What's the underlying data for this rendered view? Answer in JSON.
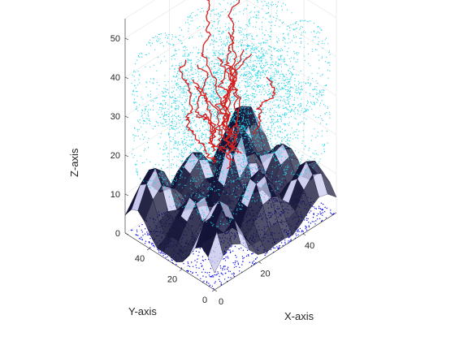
{
  "chart_data": {
    "type": "scatter",
    "plot_kind": "3d-surface-with-point-clouds-and-paths",
    "title": "",
    "xlabel": "X-axis",
    "ylabel": "Y-axis",
    "zlabel": "Z-axis",
    "xlim": [
      0,
      55
    ],
    "ylim": [
      0,
      55
    ],
    "zlim": [
      0,
      55
    ],
    "x_ticks": [
      0,
      20,
      40
    ],
    "y_ticks": [
      0,
      20,
      40
    ],
    "z_ticks": [
      0,
      10,
      20,
      30,
      40,
      50
    ],
    "grid": true,
    "view": "isometric",
    "colors": {
      "sphere_points": "#22d3e6",
      "paths": "#d41f1f",
      "ground_points": "#1010ee",
      "terrain_dark": "#141438",
      "terrain_light": "#c8c8ec"
    },
    "sphere_clouds": {
      "name": "",
      "radius": 11,
      "centers": [
        [
          10,
          10,
          22
        ],
        [
          28,
          10,
          22
        ],
        [
          46,
          10,
          22
        ],
        [
          10,
          28,
          22
        ],
        [
          28,
          28,
          22
        ],
        [
          46,
          28,
          22
        ],
        [
          10,
          46,
          22
        ],
        [
          28,
          46,
          22
        ],
        [
          46,
          46,
          22
        ],
        [
          10,
          10,
          38
        ],
        [
          28,
          10,
          38
        ],
        [
          46,
          10,
          38
        ],
        [
          10,
          28,
          38
        ],
        [
          28,
          28,
          38
        ],
        [
          46,
          28,
          38
        ],
        [
          10,
          46,
          38
        ],
        [
          28,
          46,
          38
        ],
        [
          46,
          46,
          38
        ]
      ]
    },
    "paths": {
      "name": "",
      "count": 14,
      "start_center": [
        28,
        28,
        14
      ],
      "end_height_range": [
        36,
        52
      ]
    },
    "terrain": {
      "peaks": [
        [
          8,
          8,
          18
        ],
        [
          30,
          14,
          16
        ],
        [
          48,
          8,
          14
        ],
        [
          14,
          30,
          12
        ],
        [
          36,
          34,
          20
        ],
        [
          50,
          28,
          12
        ],
        [
          8,
          48,
          16
        ],
        [
          28,
          50,
          12
        ],
        [
          48,
          48,
          18
        ]
      ]
    }
  }
}
